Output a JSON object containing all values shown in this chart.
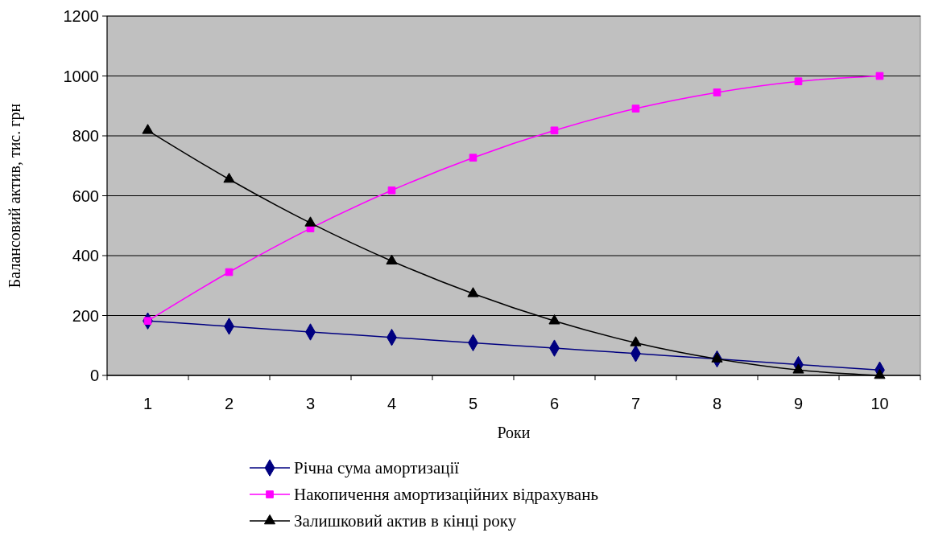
{
  "chart_data": {
    "type": "line",
    "xlabel": "Роки",
    "ylabel": "Балансовий актив, тис. грн",
    "categories": [
      "1",
      "2",
      "3",
      "4",
      "5",
      "6",
      "7",
      "8",
      "9",
      "10"
    ],
    "series": [
      {
        "name": "Річна сума амортизації",
        "color": "#000080",
        "marker": "diamond",
        "values": [
          182,
          164,
          145,
          127,
          109,
          91,
          73,
          55,
          36,
          18
        ]
      },
      {
        "name": "Накопичення амортизаційних відрахувань",
        "color": "#ff00ff",
        "marker": "square",
        "values": [
          182,
          345,
          491,
          618,
          727,
          818,
          891,
          945,
          982,
          1000
        ]
      },
      {
        "name": "Залишковий актив в кінці року",
        "color": "#000000",
        "marker": "triangle",
        "values": [
          818,
          655,
          509,
          382,
          273,
          182,
          109,
          55,
          18,
          0
        ]
      }
    ],
    "ylim": [
      0,
      1200
    ],
    "yticks": [
      0,
      200,
      400,
      600,
      800,
      1000,
      1200
    ],
    "grid": "y",
    "legend": "bottom"
  }
}
